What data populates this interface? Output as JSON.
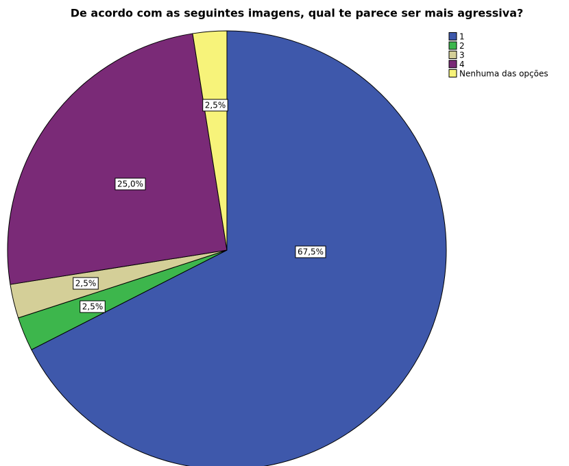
{
  "chart_data": {
    "type": "pie",
    "title": "De acordo com as seguintes imagens, qual te parece ser mais agressiva?",
    "categories": [
      "1",
      "2",
      "3",
      "4",
      "Nenhuma das opções"
    ],
    "values": [
      67.5,
      2.5,
      2.5,
      25,
      2.5
    ],
    "value_labels": [
      "67,5%",
      "2,5%",
      "2,5%",
      "25,0%",
      "2,5%"
    ],
    "colors": [
      "#3e58ab",
      "#3db64c",
      "#d4cf98",
      "#7a2a77",
      "#f7f37a"
    ],
    "legend": "top-right"
  }
}
